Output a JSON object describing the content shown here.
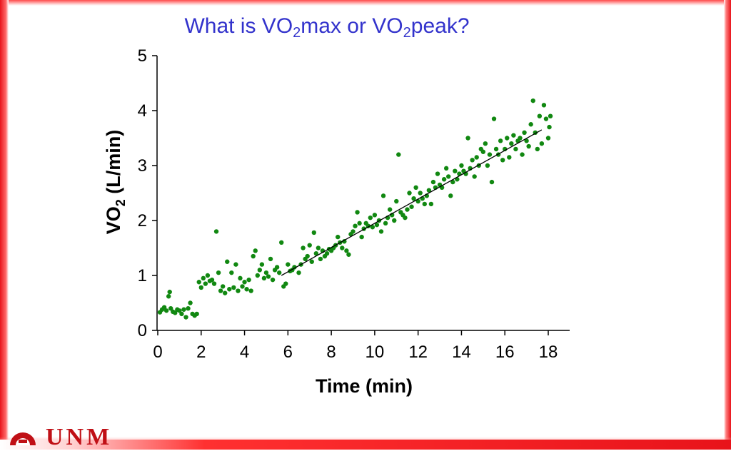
{
  "slide": {
    "title_parts": [
      "What is VO",
      "2",
      "max or VO",
      "2",
      "peak?"
    ],
    "logo": {
      "text": "UNM",
      "color": "#c01016"
    },
    "colors": {
      "title": "#3333cc",
      "accent": "#e8131a",
      "points": "#118811"
    }
  },
  "chart_data": {
    "type": "scatter",
    "title": "",
    "xlabel": "Time (min)",
    "ylabel": "VO",
    "ylabel_sub": "2",
    "ylabel_suffix": " (L/min)",
    "xlim": [
      0,
      19
    ],
    "ylim": [
      0,
      5
    ],
    "xticks": [
      0,
      2,
      4,
      6,
      8,
      10,
      12,
      14,
      16,
      18
    ],
    "yticks": [
      0,
      1,
      2,
      3,
      4,
      5
    ],
    "grid": false,
    "series": [
      {
        "color": "#118811",
        "points": [
          [
            0.1,
            0.33
          ],
          [
            0.2,
            0.38
          ],
          [
            0.3,
            0.42
          ],
          [
            0.4,
            0.36
          ],
          [
            0.5,
            0.62
          ],
          [
            0.55,
            0.7
          ],
          [
            0.6,
            0.4
          ],
          [
            0.7,
            0.34
          ],
          [
            0.8,
            0.32
          ],
          [
            0.9,
            0.38
          ],
          [
            1.0,
            0.36
          ],
          [
            1.1,
            0.3
          ],
          [
            1.2,
            0.38
          ],
          [
            1.3,
            0.24
          ],
          [
            1.4,
            0.4
          ],
          [
            1.5,
            0.5
          ],
          [
            1.6,
            0.3
          ],
          [
            1.7,
            0.27
          ],
          [
            1.8,
            0.3
          ],
          [
            1.9,
            0.88
          ],
          [
            2.0,
            0.78
          ],
          [
            2.1,
            0.95
          ],
          [
            2.2,
            0.85
          ],
          [
            2.3,
            1.0
          ],
          [
            2.4,
            0.9
          ],
          [
            2.5,
            0.92
          ],
          [
            2.6,
            0.85
          ],
          [
            2.7,
            1.8
          ],
          [
            2.8,
            1.05
          ],
          [
            2.9,
            0.72
          ],
          [
            3.0,
            0.8
          ],
          [
            3.1,
            0.68
          ],
          [
            3.2,
            1.25
          ],
          [
            3.3,
            0.75
          ],
          [
            3.4,
            1.05
          ],
          [
            3.5,
            0.78
          ],
          [
            3.6,
            1.2
          ],
          [
            3.7,
            0.72
          ],
          [
            3.8,
            0.95
          ],
          [
            3.9,
            0.8
          ],
          [
            4.0,
            0.88
          ],
          [
            4.1,
            0.75
          ],
          [
            4.2,
            0.92
          ],
          [
            4.3,
            0.72
          ],
          [
            4.4,
            1.35
          ],
          [
            4.5,
            1.45
          ],
          [
            4.6,
            1.0
          ],
          [
            4.7,
            1.1
          ],
          [
            4.8,
            1.2
          ],
          [
            4.9,
            0.95
          ],
          [
            5.0,
            1.05
          ],
          [
            5.1,
            0.98
          ],
          [
            5.2,
            1.3
          ],
          [
            5.3,
            0.92
          ],
          [
            5.4,
            1.1
          ],
          [
            5.5,
            1.15
          ],
          [
            5.6,
            1.05
          ],
          [
            5.7,
            1.6
          ],
          [
            5.8,
            0.8
          ],
          [
            5.9,
            0.85
          ],
          [
            6.0,
            1.2
          ],
          [
            6.1,
            1.08
          ],
          [
            6.2,
            1.1
          ],
          [
            6.3,
            1.15
          ],
          [
            6.5,
            1.05
          ],
          [
            6.6,
            1.2
          ],
          [
            6.7,
            1.5
          ],
          [
            6.8,
            1.3
          ],
          [
            6.9,
            1.35
          ],
          [
            7.0,
            1.55
          ],
          [
            7.1,
            1.25
          ],
          [
            7.2,
            1.78
          ],
          [
            7.3,
            1.4
          ],
          [
            7.4,
            1.5
          ],
          [
            7.5,
            1.3
          ],
          [
            7.6,
            1.45
          ],
          [
            7.7,
            1.35
          ],
          [
            7.8,
            1.4
          ],
          [
            7.9,
            1.48
          ],
          [
            8.0,
            1.45
          ],
          [
            8.1,
            1.5
          ],
          [
            8.2,
            1.55
          ],
          [
            8.3,
            1.7
          ],
          [
            8.4,
            1.6
          ],
          [
            8.5,
            1.5
          ],
          [
            8.6,
            1.62
          ],
          [
            8.7,
            1.45
          ],
          [
            8.8,
            1.38
          ],
          [
            8.9,
            1.75
          ],
          [
            9.0,
            1.8
          ],
          [
            9.1,
            1.9
          ],
          [
            9.2,
            2.15
          ],
          [
            9.3,
            1.95
          ],
          [
            9.4,
            1.7
          ],
          [
            9.5,
            1.85
          ],
          [
            9.6,
            1.95
          ],
          [
            9.7,
            1.9
          ],
          [
            9.8,
            2.05
          ],
          [
            9.9,
            1.88
          ],
          [
            10.0,
            2.1
          ],
          [
            10.1,
            1.92
          ],
          [
            10.2,
            2.0
          ],
          [
            10.3,
            1.8
          ],
          [
            10.4,
            2.45
          ],
          [
            10.5,
            1.95
          ],
          [
            10.6,
            2.05
          ],
          [
            10.7,
            2.2
          ],
          [
            10.8,
            2.1
          ],
          [
            10.9,
            2.0
          ],
          [
            11.0,
            2.35
          ],
          [
            11.1,
            3.2
          ],
          [
            11.2,
            2.15
          ],
          [
            11.3,
            2.1
          ],
          [
            11.4,
            2.05
          ],
          [
            11.5,
            2.2
          ],
          [
            11.6,
            2.5
          ],
          [
            11.7,
            2.25
          ],
          [
            11.8,
            2.4
          ],
          [
            11.9,
            2.6
          ],
          [
            12.0,
            2.35
          ],
          [
            12.1,
            2.5
          ],
          [
            12.2,
            2.4
          ],
          [
            12.3,
            2.3
          ],
          [
            12.4,
            2.45
          ],
          [
            12.5,
            2.55
          ],
          [
            12.6,
            2.3
          ],
          [
            12.7,
            2.7
          ],
          [
            12.8,
            2.6
          ],
          [
            12.9,
            2.85
          ],
          [
            13.0,
            2.65
          ],
          [
            13.1,
            2.6
          ],
          [
            13.2,
            2.75
          ],
          [
            13.3,
            2.95
          ],
          [
            13.4,
            2.8
          ],
          [
            13.5,
            2.45
          ],
          [
            13.6,
            2.7
          ],
          [
            13.7,
            2.9
          ],
          [
            13.8,
            2.75
          ],
          [
            13.9,
            2.85
          ],
          [
            14.0,
            3.0
          ],
          [
            14.1,
            2.9
          ],
          [
            14.2,
            2.85
          ],
          [
            14.3,
            3.5
          ],
          [
            14.4,
            2.95
          ],
          [
            14.5,
            3.1
          ],
          [
            14.6,
            2.8
          ],
          [
            14.7,
            3.15
          ],
          [
            14.8,
            3.0
          ],
          [
            14.9,
            3.3
          ],
          [
            15.0,
            3.25
          ],
          [
            15.1,
            3.4
          ],
          [
            15.2,
            3.0
          ],
          [
            15.3,
            3.2
          ],
          [
            15.4,
            2.7
          ],
          [
            15.5,
            3.85
          ],
          [
            15.6,
            3.3
          ],
          [
            15.7,
            3.2
          ],
          [
            15.8,
            3.45
          ],
          [
            15.9,
            3.1
          ],
          [
            16.0,
            3.3
          ],
          [
            16.1,
            3.5
          ],
          [
            16.2,
            3.15
          ],
          [
            16.3,
            3.4
          ],
          [
            16.4,
            3.55
          ],
          [
            16.5,
            3.3
          ],
          [
            16.6,
            3.45
          ],
          [
            16.7,
            3.5
          ],
          [
            16.8,
            3.2
          ],
          [
            16.9,
            3.6
          ],
          [
            17.0,
            3.45
          ],
          [
            17.1,
            3.35
          ],
          [
            17.2,
            3.75
          ],
          [
            17.3,
            4.18
          ],
          [
            17.4,
            3.6
          ],
          [
            17.5,
            3.3
          ],
          [
            17.6,
            3.9
          ],
          [
            17.7,
            3.4
          ],
          [
            17.8,
            4.1
          ],
          [
            17.9,
            3.85
          ],
          [
            18.0,
            3.5
          ],
          [
            18.05,
            3.7
          ],
          [
            18.1,
            3.9
          ]
        ],
        "trend": [
          [
            5.7,
            1.0
          ],
          [
            17.7,
            3.65
          ]
        ]
      }
    ]
  }
}
